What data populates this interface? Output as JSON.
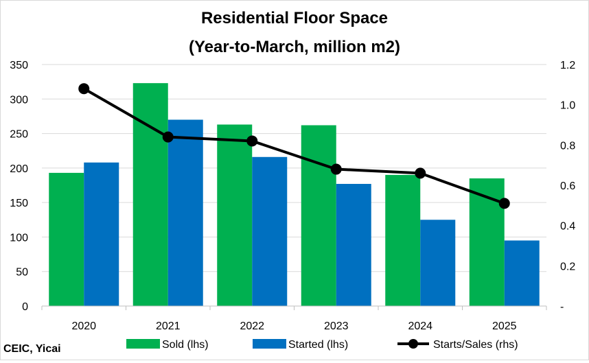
{
  "source": "CEIC, Yicai",
  "chart_data": {
    "type": "bar",
    "title": "Residential Floor Space",
    "subtitle": "(Year-to-March, million m2)",
    "xlabel": "",
    "ylabel": "",
    "categories": [
      "2020",
      "2021",
      "2022",
      "2023",
      "2024",
      "2025"
    ],
    "series": [
      {
        "name": "Sold (lhs)",
        "type": "bar",
        "axis": "left",
        "color": "#00b050",
        "values": [
          193,
          323,
          263,
          262,
          190,
          185
        ]
      },
      {
        "name": "Started (lhs)",
        "type": "bar",
        "axis": "left",
        "color": "#0070c0",
        "values": [
          208,
          270,
          216,
          177,
          125,
          95
        ]
      },
      {
        "name": "Starts/Sales (rhs)",
        "type": "line",
        "axis": "right",
        "color": "#000000",
        "marker": "circle",
        "values": [
          1.08,
          0.84,
          0.82,
          0.68,
          0.66,
          0.51
        ]
      }
    ],
    "y_left": {
      "min": 0,
      "max": 350,
      "ticks": [
        "0",
        "50",
        "100",
        "150",
        "200",
        "250",
        "300",
        "350"
      ]
    },
    "y_right": {
      "min": 0,
      "max": 1.2,
      "ticks": [
        "-",
        "0.2",
        "0.4",
        "0.6",
        "0.8",
        "1.0",
        "1.2"
      ]
    },
    "grid": true,
    "legend_position": "bottom"
  }
}
